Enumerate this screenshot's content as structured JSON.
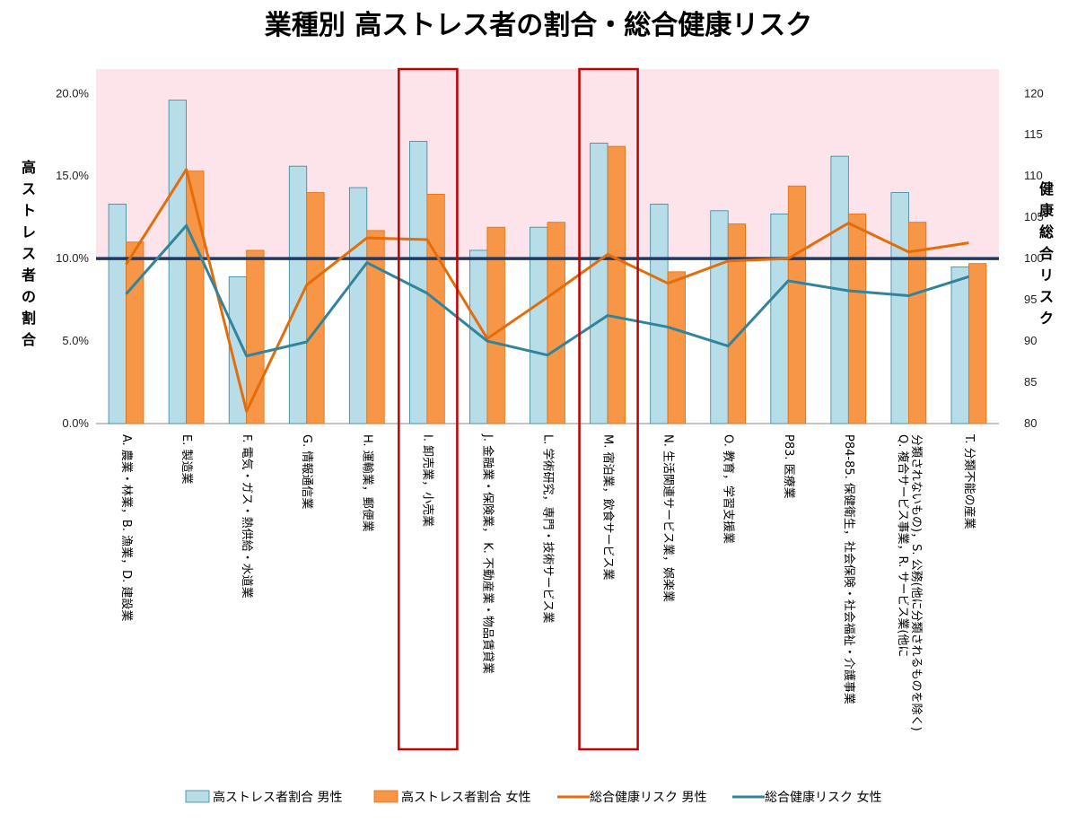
{
  "chart_data": {
    "type": "bar",
    "title": "業種別 高ストレス者の割合・総合健康リスク",
    "ylabel": "高ストレス者の割合",
    "y2label": "健康総合リスク",
    "ylim": [
      0,
      0.2
    ],
    "y2lim": [
      80,
      120
    ],
    "yticks": [
      "0.0%",
      "5.0%",
      "10.0%",
      "15.0%",
      "20.0%"
    ],
    "y2ticks": [
      "80",
      "85",
      "90",
      "95",
      "100",
      "105",
      "110",
      "115",
      "120"
    ],
    "reference_line": 100,
    "highlight_band": "above 100 (pink)",
    "highlighted_categories": [
      5,
      8
    ],
    "categories": [
      "A. 農業・林業，B. 漁業，D. 建設業",
      "E. 製造業",
      "F. 電気・ガス・熱供給・水道業",
      "G. 情報通信業",
      "H. 運輸業，郵便業",
      "I. 卸売業，小売業",
      "J. 金融業・保険業， K. 不動産業・物品賃貸業",
      "L. 学術研究，専門・技術サービス業",
      "M. 宿泊業，飲食サービス業",
      "N. 生活関連サービス業，娯楽業",
      "O. 教育，学習支援業",
      "P83. 医療業",
      "P84-85. 保健衛生，社会保険・社会福祉・介護事業",
      "Q. 複合サービス事業，R. サービス業(他に分類されないもの)，S. 公務(他に分類されるものを除く)",
      "T. 分類不能の産業"
    ],
    "series": [
      {
        "name": "高ストレス者割合 男性",
        "type": "bar",
        "axis": "left",
        "color": "#b7dde8",
        "stroke": "#31859c",
        "values": [
          0.133,
          0.196,
          0.089,
          0.156,
          0.143,
          0.171,
          0.105,
          0.119,
          0.17,
          0.133,
          0.129,
          0.127,
          0.162,
          0.14,
          0.095
        ]
      },
      {
        "name": "高ストレス者割合 女性",
        "type": "bar",
        "axis": "left",
        "color": "#f79646",
        "stroke": "#e46c0a",
        "values": [
          0.11,
          0.153,
          0.105,
          0.14,
          0.117,
          0.139,
          0.119,
          0.122,
          0.168,
          0.092,
          0.121,
          0.144,
          0.127,
          0.122,
          0.097
        ]
      },
      {
        "name": "総合健康リスク 男性",
        "type": "line",
        "axis": "right",
        "color": "#e46c0a",
        "values": [
          99.3,
          110.8,
          81.5,
          96.8,
          102.5,
          102.3,
          90.3,
          95.3,
          100.5,
          97.0,
          99.7,
          100.0,
          104.3,
          100.8,
          101.9
        ]
      },
      {
        "name": "総合健康リスク 女性",
        "type": "line",
        "axis": "right",
        "color": "#31849b",
        "values": [
          95.7,
          104.0,
          88.2,
          89.9,
          99.5,
          95.8,
          90.0,
          88.3,
          93.1,
          91.7,
          89.4,
          97.3,
          96.1,
          95.5,
          97.8
        ]
      }
    ],
    "legend": "bottom"
  }
}
